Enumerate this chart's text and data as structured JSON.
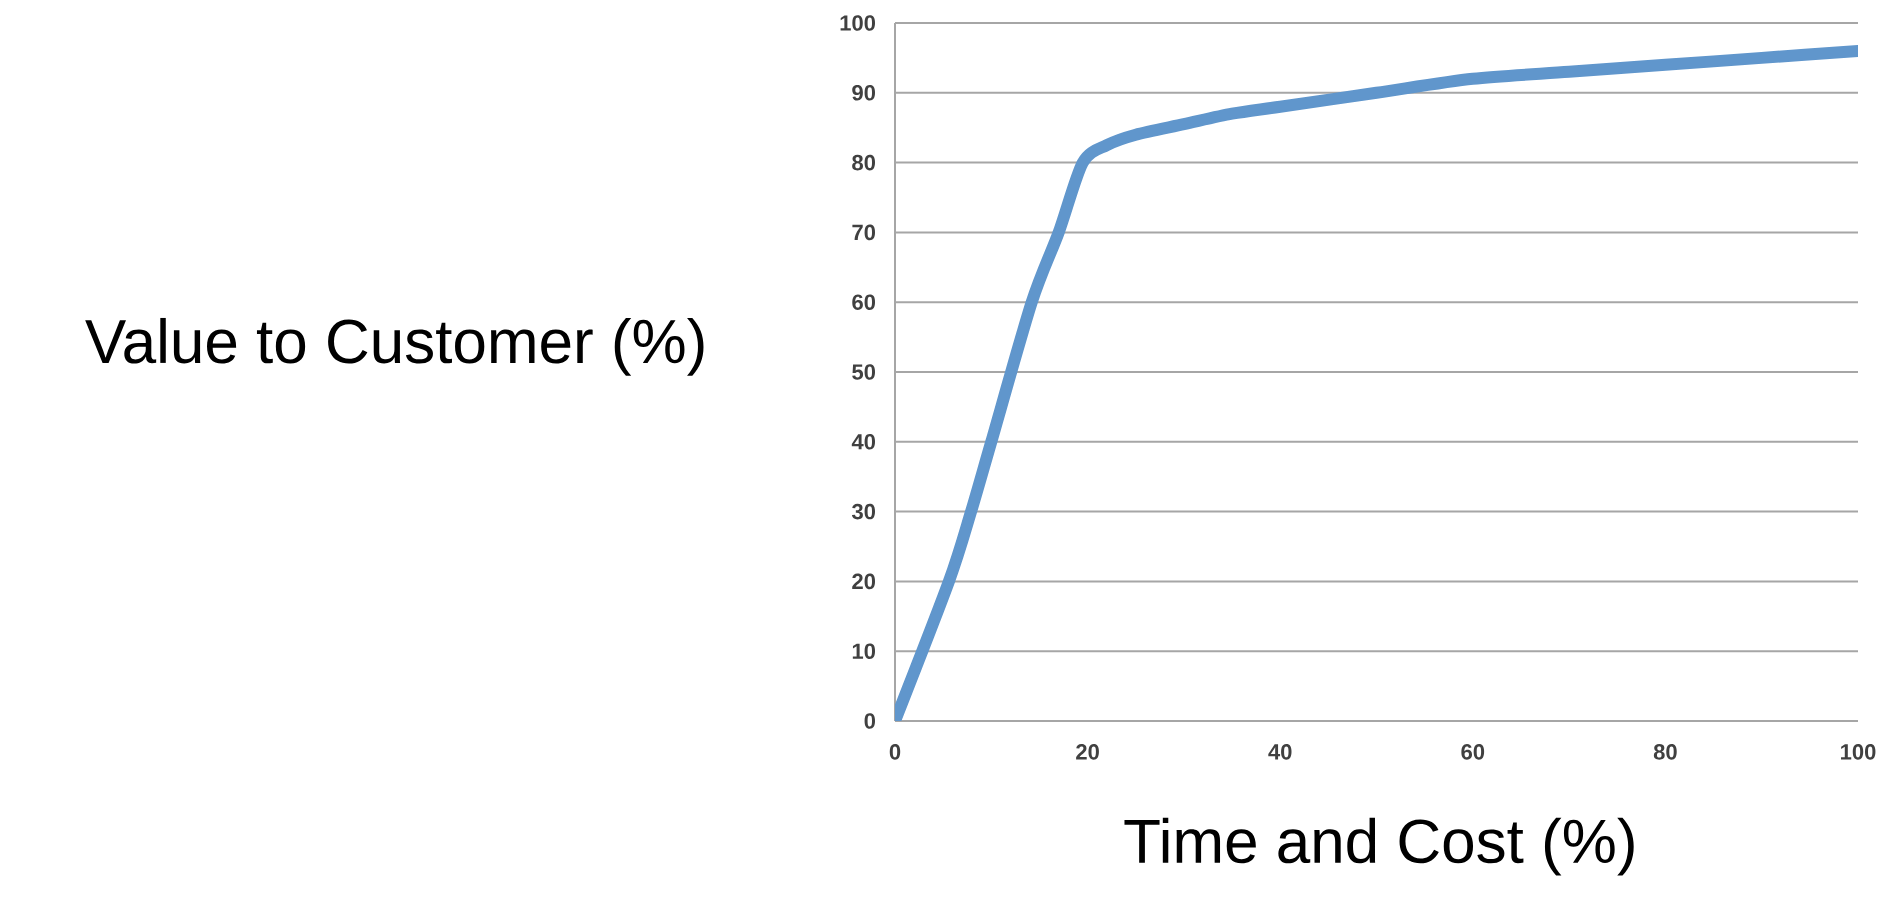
{
  "chart_data": {
    "type": "line",
    "xlabel": "Time and Cost (%)",
    "ylabel": "Value to Customer (%)",
    "x": [
      0,
      5.6,
      7.9,
      10,
      14.2,
      17,
      19.5,
      22,
      25,
      30,
      35,
      40,
      50,
      60,
      70,
      80,
      90,
      100
    ],
    "series": [
      {
        "color": "#6096cc",
        "values": [
          0,
          20,
          30,
          40,
          60,
          70,
          80,
          82.5,
          84,
          85.5,
          87,
          88,
          90,
          92,
          93,
          94,
          95,
          96
        ]
      }
    ],
    "xlim": [
      0,
      100
    ],
    "ylim": [
      0,
      100
    ],
    "xticks": [
      0,
      20,
      40,
      60,
      80,
      100
    ],
    "yticks": [
      0,
      10,
      20,
      30,
      40,
      50,
      60,
      70,
      80,
      90,
      100
    ],
    "grid": "y",
    "marker": "none",
    "line_style": "solid"
  }
}
